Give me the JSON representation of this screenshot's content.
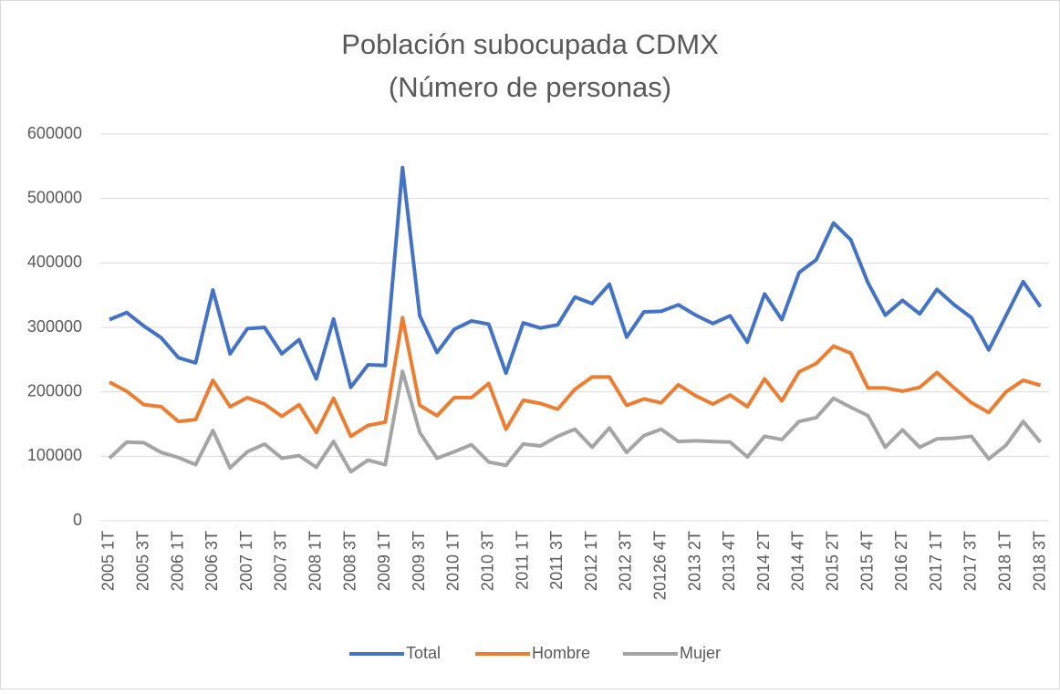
{
  "chart_data": {
    "type": "line",
    "title": "Población subocupada CDMX",
    "subtitle": "(Número de personas)",
    "categories": [
      "2005 1T",
      null,
      "2005 3T",
      null,
      "2006 1T",
      null,
      "2006 3T",
      null,
      "2007 1T",
      null,
      "2007 3T",
      null,
      "2008 1T",
      null,
      "2008 3T",
      null,
      "2009 1T",
      null,
      "2009 3T",
      null,
      "2010 1T",
      null,
      "2010 3T",
      null,
      "2011 1T",
      null,
      "2011 3T",
      null,
      "2012 1T",
      null,
      "2012 3T",
      null,
      "20126 4T",
      null,
      "2013 2T",
      null,
      "2013 4T",
      null,
      "2014 2T",
      null,
      "2014 4T",
      null,
      "2015 2T",
      null,
      "2015 4T",
      null,
      "2016 2T",
      null,
      "2017 1T",
      null,
      "2017 3T",
      null,
      "2018 1T",
      null,
      "2018 3T"
    ],
    "series": [
      {
        "name": "Total",
        "color": "#4472c4",
        "values": [
          312000,
          323000,
          302000,
          284000,
          253000,
          245000,
          358000,
          259000,
          298000,
          300000,
          259000,
          281000,
          220000,
          313000,
          207000,
          242000,
          241000,
          548000,
          318000,
          261000,
          297000,
          310000,
          305000,
          229000,
          307000,
          299000,
          304000,
          347000,
          337000,
          367000,
          285000,
          324000,
          325000,
          335000,
          319000,
          306000,
          318000,
          277000,
          352000,
          312000,
          385000,
          405000,
          462000,
          436000,
          369000,
          319000,
          342000,
          321000,
          359000,
          335000,
          315000,
          265000,
          318000,
          371000,
          332000
        ]
      },
      {
        "name": "Hombre",
        "color": "#ed7d31",
        "values": [
          215000,
          201000,
          180000,
          177000,
          154000,
          157000,
          218000,
          177000,
          191000,
          181000,
          162000,
          180000,
          137000,
          190000,
          131000,
          148000,
          153000,
          315000,
          179000,
          163000,
          191000,
          191000,
          213000,
          142000,
          187000,
          182000,
          173000,
          204000,
          223000,
          223000,
          179000,
          189000,
          183000,
          211000,
          194000,
          181000,
          195000,
          177000,
          220000,
          186000,
          231000,
          244000,
          271000,
          260000,
          206000,
          206000,
          201000,
          207000,
          230000,
          206000,
          183000,
          168000,
          200000,
          218000,
          210000
        ]
      },
      {
        "name": "Mujer",
        "color": "#a5a5a5",
        "values": [
          97000,
          122000,
          121000,
          106000,
          98000,
          87000,
          140000,
          82000,
          107000,
          119000,
          97000,
          101000,
          83000,
          123000,
          76000,
          94000,
          87000,
          232000,
          137000,
          97000,
          107000,
          118000,
          91000,
          86000,
          119000,
          116000,
          131000,
          142000,
          114000,
          144000,
          106000,
          132000,
          142000,
          123000,
          124000,
          123000,
          122000,
          99000,
          131000,
          126000,
          154000,
          160000,
          190000,
          176000,
          163000,
          114000,
          141000,
          114000,
          127000,
          128000,
          131000,
          96000,
          117000,
          154000,
          122000
        ]
      }
    ],
    "ylim": [
      0,
      600000
    ],
    "yticks": [
      0,
      100000,
      200000,
      300000,
      400000,
      500000,
      600000
    ],
    "grid": true,
    "legend": "bottom"
  }
}
